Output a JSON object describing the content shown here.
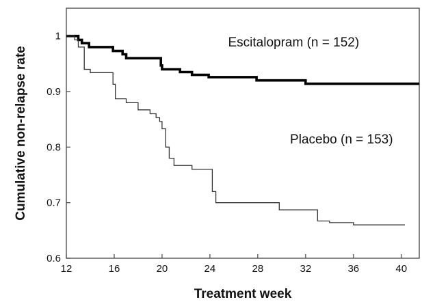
{
  "chart_data": {
    "type": "line",
    "xlabel": "Treatment week",
    "ylabel": "Cumulative non-relapse rate",
    "xlim": [
      12,
      41.5
    ],
    "ylim": [
      0.6,
      1.05
    ],
    "xticks": [
      12,
      16,
      20,
      24,
      28,
      32,
      36,
      40
    ],
    "yticks": [
      0.6,
      0.7,
      0.8,
      0.9,
      1
    ],
    "x_tick_labels": [
      "12",
      "16",
      "20",
      "24",
      "28",
      "32",
      "36",
      "40"
    ],
    "y_tick_labels": [
      "0.6",
      "0.7",
      "0.8",
      "0.9",
      "1"
    ],
    "grid": false,
    "step": true,
    "series": [
      {
        "name": "Escitalopram (n = 152)",
        "color": "#000000",
        "x": [
          12,
          12.9,
          13,
          13.3,
          13.9,
          15.3,
          15.9,
          16.7,
          17.0,
          19.9,
          20.0,
          21.5,
          22.5,
          23.9,
          27.9,
          29.9,
          32.0,
          41.5
        ],
        "y": [
          1.0,
          1.0,
          0.993,
          0.987,
          0.98,
          0.98,
          0.973,
          0.967,
          0.96,
          0.947,
          0.94,
          0.935,
          0.93,
          0.926,
          0.92,
          0.92,
          0.914,
          0.914
        ]
      },
      {
        "name": "Placebo (n = 153)",
        "color": "#333333",
        "x": [
          12,
          12.7,
          13.0,
          13.5,
          14.0,
          15.9,
          16.1,
          17.0,
          18.0,
          19.0,
          19.5,
          19.8,
          20.0,
          20.3,
          20.6,
          21.0,
          22.0,
          22.5,
          23.9,
          24.2,
          24.5,
          29.0,
          29.8,
          33.0,
          34.0,
          36.0,
          40.3
        ],
        "y": [
          1.0,
          0.993,
          0.98,
          0.94,
          0.934,
          0.913,
          0.887,
          0.88,
          0.867,
          0.86,
          0.853,
          0.846,
          0.833,
          0.8,
          0.78,
          0.767,
          0.767,
          0.76,
          0.76,
          0.72,
          0.7,
          0.7,
          0.687,
          0.667,
          0.664,
          0.66,
          0.66
        ]
      }
    ],
    "annotations": [
      {
        "text": "Escitalopram (n = 152)",
        "x": 31,
        "y": 0.99
      },
      {
        "text": "Placebo (n = 153)",
        "x": 35,
        "y": 0.815
      }
    ]
  }
}
